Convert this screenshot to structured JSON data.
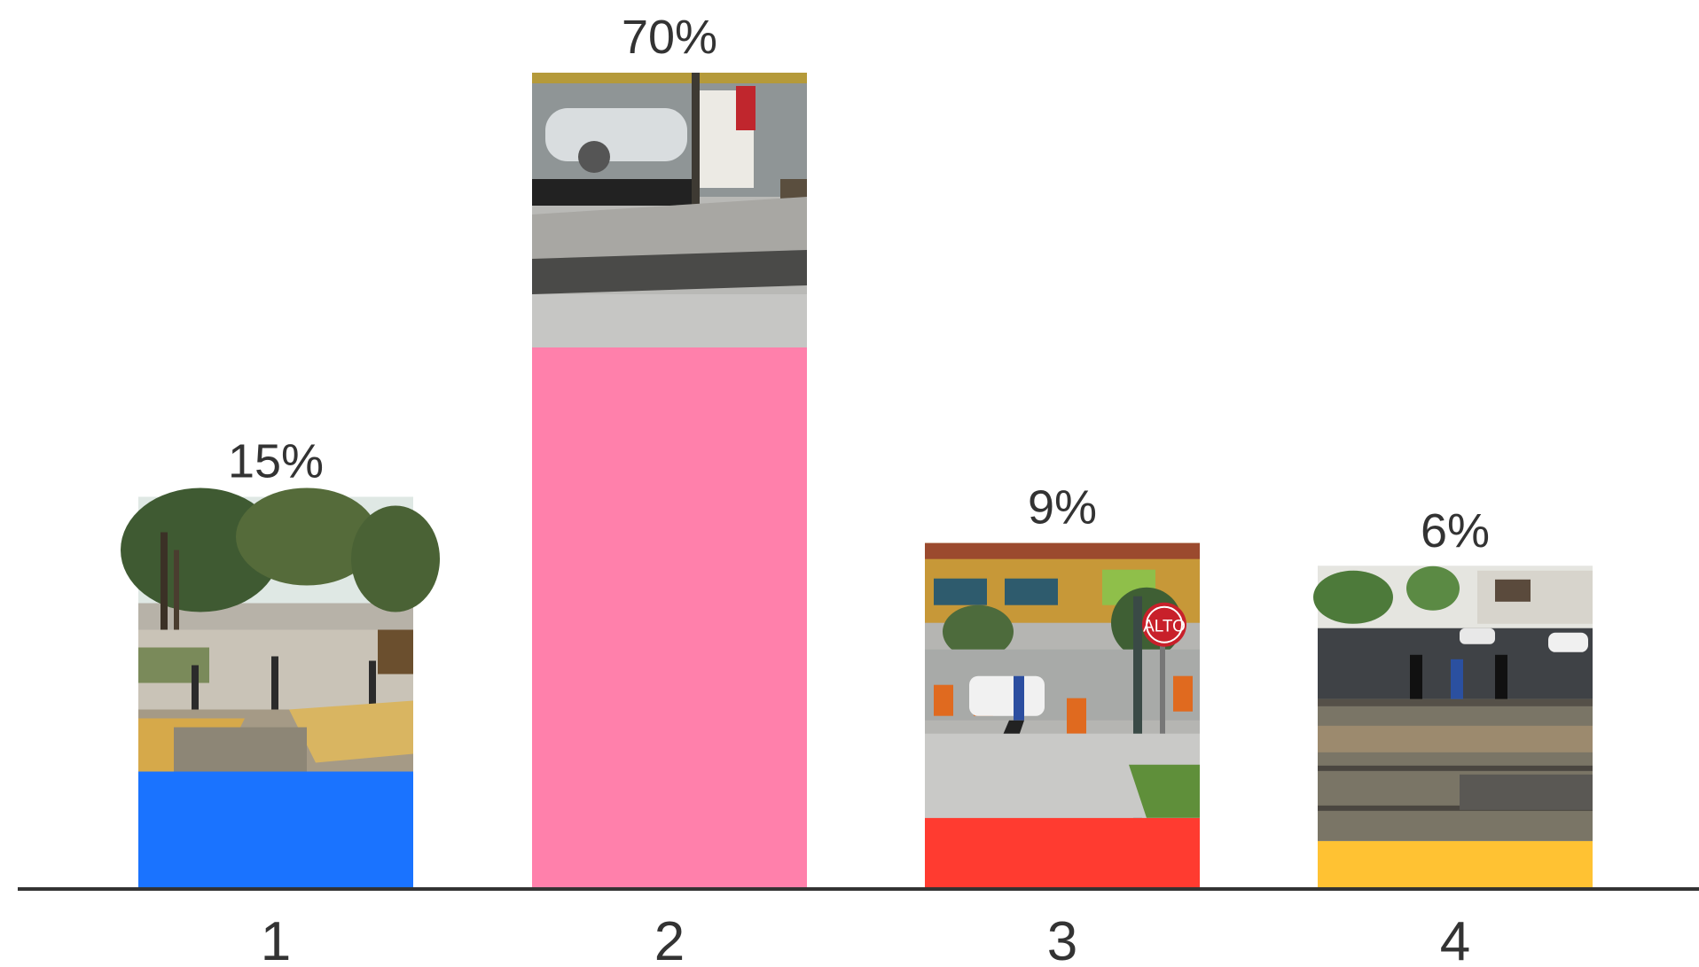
{
  "chart_data": {
    "type": "bar",
    "categories": [
      "1",
      "2",
      "3",
      "4"
    ],
    "values": [
      15,
      70,
      9,
      6
    ],
    "value_labels": [
      "15%",
      "70%",
      "9%",
      "6%"
    ],
    "colors": [
      "#1a73ff",
      "#ff80ab",
      "#ff3b30",
      "#ffc233"
    ],
    "photos": [
      "park-plaza-photo",
      "storefront-sidewalk-photo",
      "crosswalk-stop-sign-photo",
      "railroad-crossing-photo"
    ],
    "grid": false,
    "legend": "none",
    "xlabel": "",
    "ylabel": "",
    "ylim": [
      0,
      70
    ]
  }
}
